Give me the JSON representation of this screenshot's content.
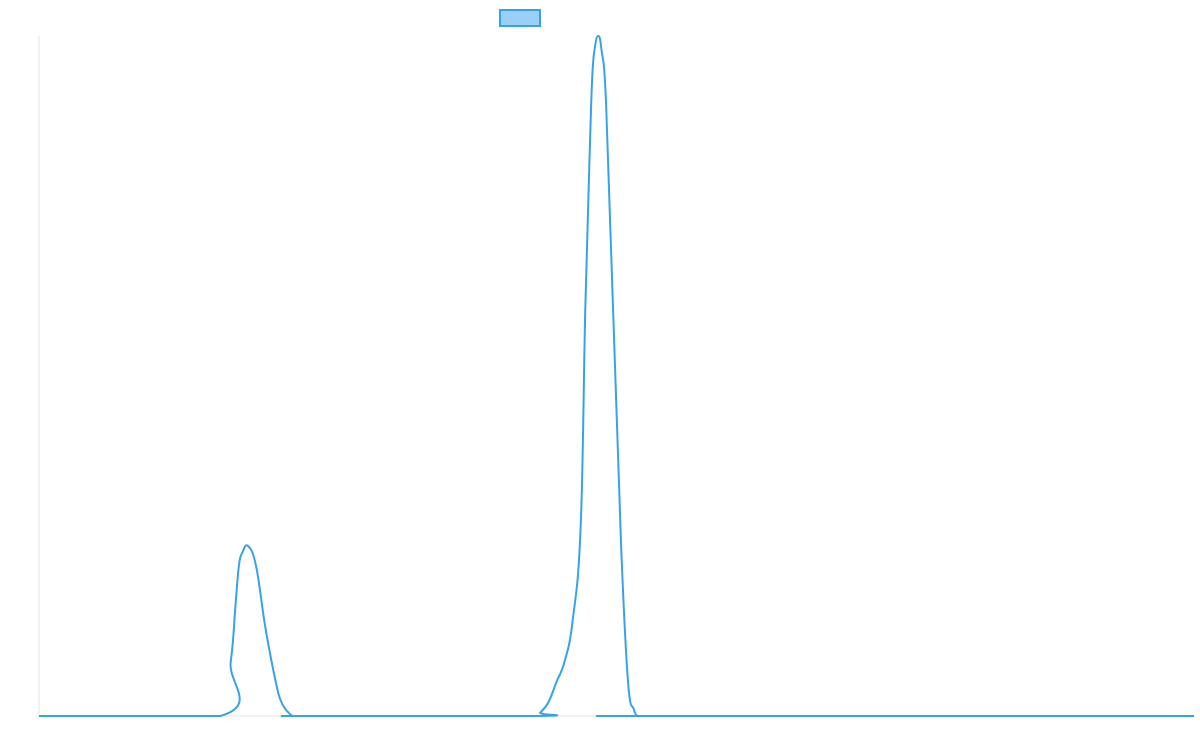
{
  "chart_data": {
    "type": "line",
    "title": "",
    "xlabel": "",
    "ylabel": "",
    "grid": false,
    "legend": {
      "placement": "top-center",
      "swatch_only": true
    },
    "xlim": [
      0,
      100
    ],
    "ylim": [
      0,
      100
    ],
    "series": [
      {
        "color": "#36a2eb",
        "fill": "#9ad0f5",
        "x": [
          0,
          15.7,
          16.6,
          17.0,
          17.3,
          17.6,
          18.1,
          18.8,
          19.6,
          20.5,
          21.0,
          21.6,
          22.0,
          22.3,
          23.0,
          43.0,
          43.4,
          44.1,
          44.8,
          45.5,
          46.2,
          46.9,
          47.3,
          47.7,
          47.9,
          48.1,
          48.4,
          48.7,
          49.1,
          49.7,
          50.4,
          51.0,
          51.5,
          51.8,
          52.0,
          52.7,
          100
        ],
        "y": [
          0,
          0,
          8,
          16,
          22,
          24,
          25,
          22,
          13,
          5,
          2,
          0.5,
          0,
          0,
          0,
          0,
          0.5,
          2,
          5,
          8,
          14,
          28,
          60,
          84,
          94,
          98,
          100,
          98,
          90,
          60,
          25,
          5,
          1,
          0,
          0,
          0,
          0
        ]
      }
    ]
  }
}
